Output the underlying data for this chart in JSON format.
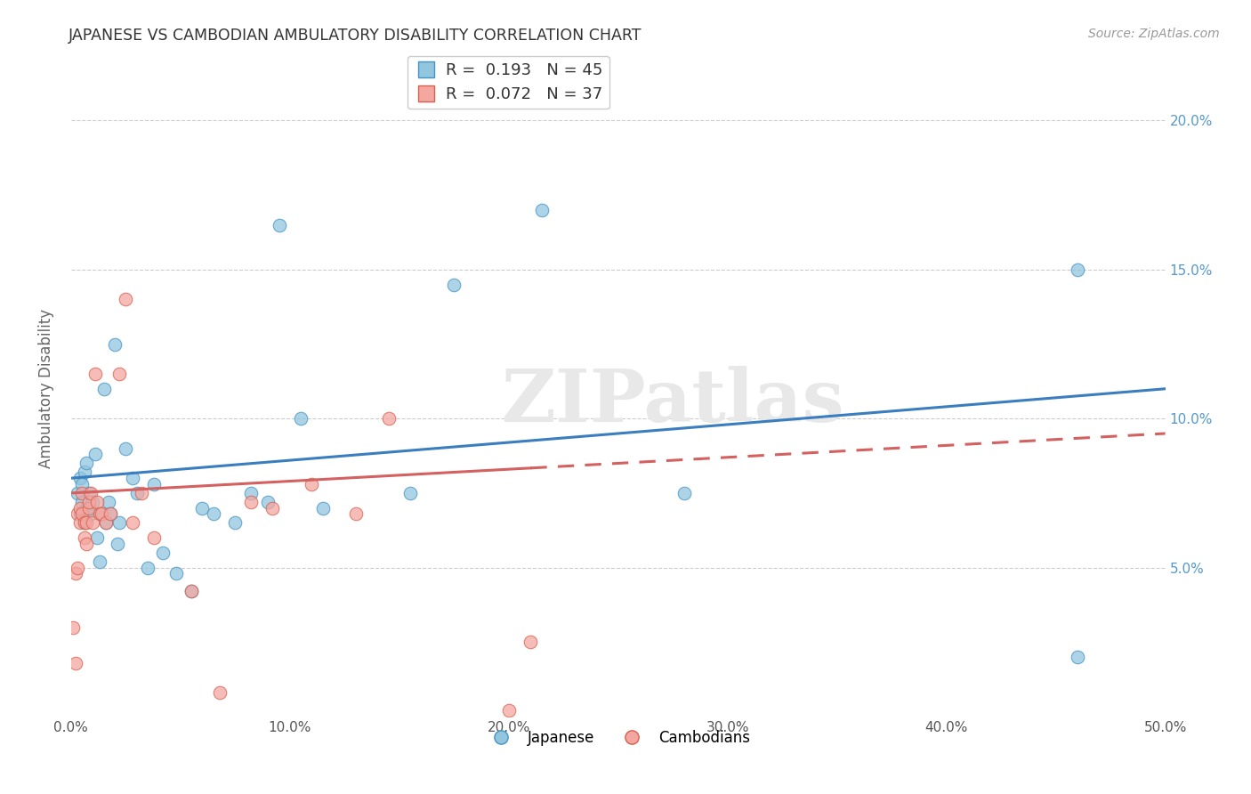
{
  "title": "JAPANESE VS CAMBODIAN AMBULATORY DISABILITY CORRELATION CHART",
  "source": "Source: ZipAtlas.com",
  "ylabel": "Ambulatory Disability",
  "xlim": [
    0.0,
    0.5
  ],
  "ylim": [
    0.0,
    0.22
  ],
  "xtick_labels": [
    "0.0%",
    "10.0%",
    "20.0%",
    "30.0%",
    "40.0%",
    "50.0%"
  ],
  "xtick_vals": [
    0.0,
    0.1,
    0.2,
    0.3,
    0.4,
    0.5
  ],
  "ytick_vals": [
    0.05,
    0.1,
    0.15,
    0.2
  ],
  "ytick_right_labels": [
    "5.0%",
    "10.0%",
    "15.0%",
    "20.0%"
  ],
  "japanese_x": [
    0.003,
    0.004,
    0.004,
    0.005,
    0.005,
    0.006,
    0.006,
    0.007,
    0.007,
    0.008,
    0.009,
    0.01,
    0.011,
    0.012,
    0.013,
    0.014,
    0.015,
    0.016,
    0.017,
    0.018,
    0.02,
    0.021,
    0.022,
    0.025,
    0.028,
    0.03,
    0.035,
    0.038,
    0.042,
    0.048,
    0.055,
    0.06,
    0.065,
    0.075,
    0.082,
    0.09,
    0.095,
    0.105,
    0.115,
    0.155,
    0.175,
    0.215,
    0.28,
    0.46,
    0.46
  ],
  "japanese_y": [
    0.075,
    0.068,
    0.08,
    0.072,
    0.078,
    0.065,
    0.082,
    0.07,
    0.085,
    0.075,
    0.068,
    0.072,
    0.088,
    0.06,
    0.052,
    0.068,
    0.11,
    0.065,
    0.072,
    0.068,
    0.125,
    0.058,
    0.065,
    0.09,
    0.08,
    0.075,
    0.05,
    0.078,
    0.055,
    0.048,
    0.042,
    0.07,
    0.068,
    0.065,
    0.075,
    0.072,
    0.165,
    0.1,
    0.07,
    0.075,
    0.145,
    0.17,
    0.075,
    0.15,
    0.02
  ],
  "cambodian_x": [
    0.001,
    0.002,
    0.002,
    0.003,
    0.003,
    0.004,
    0.004,
    0.005,
    0.005,
    0.006,
    0.006,
    0.007,
    0.007,
    0.008,
    0.008,
    0.009,
    0.01,
    0.011,
    0.012,
    0.013,
    0.014,
    0.016,
    0.018,
    0.022,
    0.025,
    0.028,
    0.032,
    0.038,
    0.055,
    0.068,
    0.082,
    0.092,
    0.11,
    0.13,
    0.145,
    0.2,
    0.21
  ],
  "cambodian_y": [
    0.03,
    0.018,
    0.048,
    0.068,
    0.05,
    0.065,
    0.07,
    0.075,
    0.068,
    0.06,
    0.065,
    0.058,
    0.065,
    0.07,
    0.072,
    0.075,
    0.065,
    0.115,
    0.072,
    0.068,
    0.068,
    0.065,
    0.068,
    0.115,
    0.14,
    0.065,
    0.075,
    0.06,
    0.042,
    0.008,
    0.072,
    0.07,
    0.078,
    0.068,
    0.1,
    0.002,
    0.025
  ],
  "japanese_R": 0.193,
  "cambodian_R": 0.072,
  "japanese_N": 45,
  "cambodian_N": 37,
  "japanese_color": "#92c5de",
  "cambodian_color": "#f4a6a0",
  "japanese_edge_color": "#4393c3",
  "cambodian_edge_color": "#d6604d",
  "japanese_line_color": "#3a7ebf",
  "cambodian_line_color": "#d46060",
  "background_color": "#ffffff",
  "grid_color": "#cccccc",
  "watermark_color": "#e8e8e8",
  "title_color": "#333333",
  "axis_label_color": "#666666",
  "right_tick_color": "#5599cc"
}
